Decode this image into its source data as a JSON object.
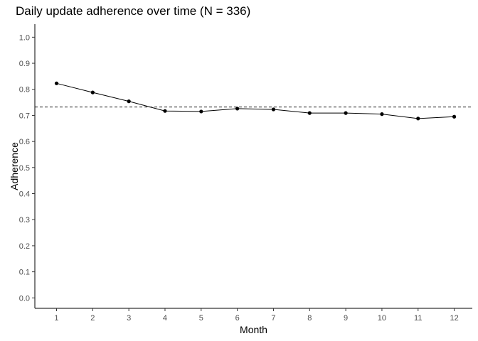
{
  "chart_data": {
    "type": "line",
    "title": "Daily update adherence over time (N = 336)",
    "xlabel": "Month",
    "ylabel": "Adherence",
    "x": [
      1,
      2,
      3,
      4,
      5,
      6,
      7,
      8,
      9,
      10,
      11,
      12
    ],
    "series": [
      {
        "values": [
          0.823,
          0.788,
          0.754,
          0.717,
          0.715,
          0.726,
          0.723,
          0.709,
          0.709,
          0.705,
          0.688,
          0.695
        ]
      }
    ],
    "reference_line": {
      "y": 0.732,
      "style": "dashed"
    },
    "xlim": [
      0.4,
      12.5
    ],
    "ylim": [
      -0.04,
      1.05
    ],
    "x_ticks": [
      "1",
      "2",
      "3",
      "4",
      "5",
      "6",
      "7",
      "8",
      "9",
      "10",
      "11",
      "12"
    ],
    "y_ticks": [
      "0.0",
      "0.1",
      "0.2",
      "0.3",
      "0.4",
      "0.5",
      "0.6",
      "0.7",
      "0.8",
      "0.9",
      "1.0"
    ],
    "grid": false,
    "line_color": "#000000",
    "point_color": "#000000"
  }
}
